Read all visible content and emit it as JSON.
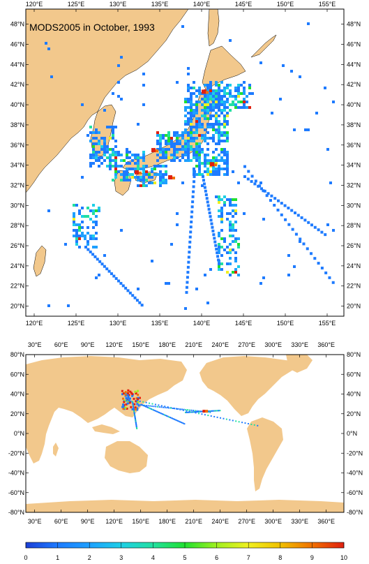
{
  "title": "MODS2005 in October, 1993",
  "colors": {
    "land": "#f2c88c",
    "ocean": "#ffffff",
    "frame": "#000000",
    "scale": [
      "#1b3fd6",
      "#1e7bff",
      "#1ea0ff",
      "#1ecfe6",
      "#22e0a0",
      "#20e030",
      "#a0f020",
      "#f0f020",
      "#f0c000",
      "#f07000",
      "#e02010"
    ]
  },
  "top_map": {
    "lon_labels": [
      "120°E",
      "125°E",
      "130°E",
      "135°E",
      "140°E",
      "145°E",
      "150°E",
      "155°E"
    ],
    "lat_labels": [
      "48°N",
      "46°N",
      "44°N",
      "42°N",
      "40°N",
      "38°N",
      "36°N",
      "34°N",
      "32°N",
      "30°N",
      "28°N",
      "26°N",
      "24°N",
      "22°N",
      "20°N"
    ],
    "lon_range": [
      119,
      157
    ],
    "lat_range": [
      19,
      49.5
    ]
  },
  "bottom_map": {
    "lon_labels": [
      "30°E",
      "60°E",
      "90°E",
      "120°E",
      "150°E",
      "180°E",
      "210°E",
      "240°E",
      "270°E",
      "300°E",
      "330°E",
      "360°E"
    ],
    "lat_labels": [
      "80°N",
      "60°N",
      "40°N",
      "20°N",
      "0°N",
      "-20°N",
      "-40°N",
      "-60°N",
      "-80°N"
    ],
    "lon_range": [
      20,
      380
    ],
    "lat_range": [
      -80,
      80
    ]
  },
  "colorbar": {
    "labels": [
      "0",
      "1",
      "2",
      "3",
      "4",
      "5",
      "6",
      "7",
      "8",
      "9",
      "10"
    ]
  }
}
